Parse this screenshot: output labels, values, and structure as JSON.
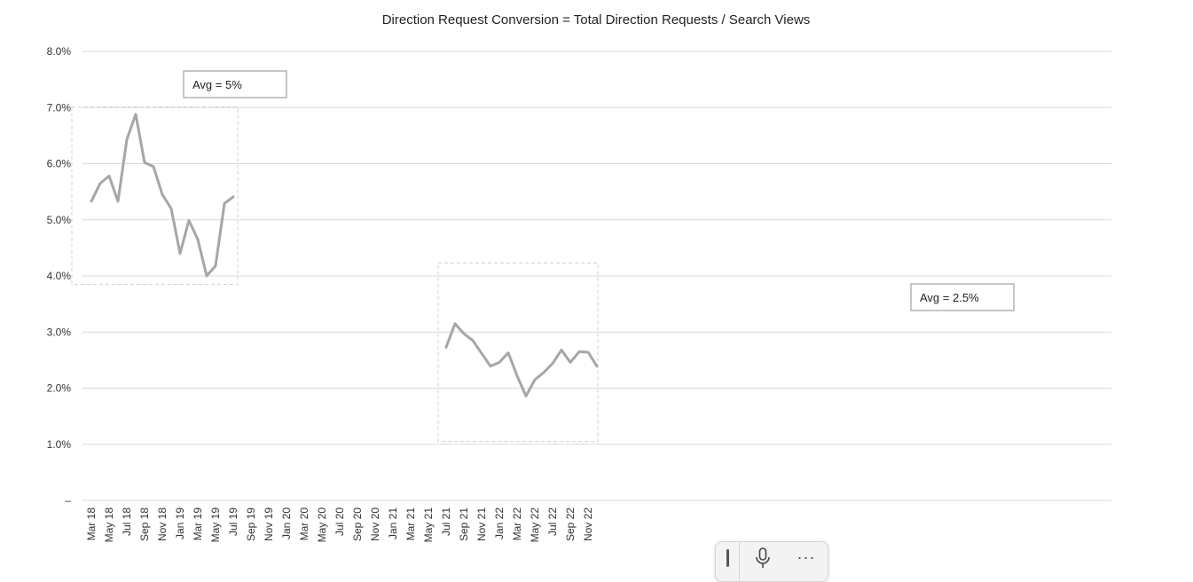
{
  "chart_data": {
    "type": "line",
    "title": "Direction Request Conversion = Total Direction Requests / Search Views",
    "xlabel": "",
    "ylabel": "",
    "ylim": [
      0,
      0.08
    ],
    "y_ticks": [
      "–",
      "1.0%",
      "2.0%",
      "3.0%",
      "4.0%",
      "5.0%",
      "6.0%",
      "7.0%",
      "8.0%"
    ],
    "grid": true,
    "x_tick_labels": [
      "Mar 18",
      "May 18",
      "Jul 18",
      "Sep 18",
      "Nov 18",
      "Jan 19",
      "Mar 19",
      "May 19",
      "Jul 19",
      "Sep 19",
      "Nov 19",
      "Jan 20",
      "Mar 20",
      "May 20",
      "Jul 20",
      "Sep 20",
      "Nov 20",
      "Jan 21",
      "Mar 21",
      "May 21",
      "Jul 21",
      "Sep 21",
      "Nov 21",
      "Jan 22",
      "Mar 22",
      "May 22",
      "Jul 22",
      "Sep 22",
      "Nov 22"
    ],
    "x_months_start": "Mar 18",
    "series": [
      {
        "name": "",
        "color": "#a6a6a6",
        "segments": [
          {
            "start": "Mar 18",
            "values": [
              0.0533,
              0.0565,
              0.0578,
              0.0533,
              0.0643,
              0.0688,
              0.0602,
              0.0595,
              0.0545,
              0.052,
              0.044,
              0.0499,
              0.0465,
              0.04,
              0.0418,
              0.0529,
              0.0541
            ]
          },
          {
            "start": "Jul 21",
            "values": [
              0.0273,
              0.0315,
              0.0297,
              0.0285,
              0.0262,
              0.0239,
              0.0246,
              0.0263,
              0.0222,
              0.0186,
              0.0215,
              0.0228,
              0.0244,
              0.0268,
              0.0246,
              0.0265,
              0.0264,
              0.0239
            ]
          }
        ]
      }
    ],
    "annotations": [
      {
        "text": "Avg = 5%",
        "region": "Mar 18 – Jul 19"
      },
      {
        "text": "Avg = 2.5%",
        "region": "Jul 21 – Dec 22"
      }
    ]
  },
  "toolbar": {
    "more_label": "···",
    "icons": [
      "grip-icon",
      "microphone-icon",
      "more-icon"
    ]
  }
}
